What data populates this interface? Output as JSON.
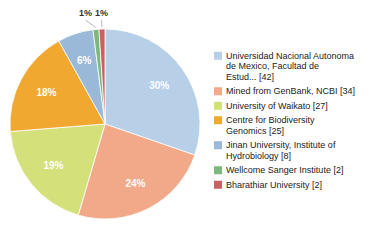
{
  "chart_data": {
    "type": "pie",
    "categories": [
      "Universidad Nacional Autonoma\nde Mexico, Facultad de\nEstud... [42]",
      "Mined from GenBank, NCBI [34]",
      "University of Waikato [27]",
      "Centre for Biodiversity\nGenomics [25]",
      "Jinan University, Institute of\nHydrobiology [8]",
      "Wellcome Sanger Institute [2]",
      "Bharathiar University [2]"
    ],
    "values": [
      30,
      24,
      19,
      18,
      6,
      1,
      1
    ],
    "value_labels": [
      "30%",
      "24%",
      "19%",
      "18%",
      "6%",
      "1%",
      "1%"
    ],
    "colors": [
      "#b8cfe8",
      "#f2a98a",
      "#d4e07a",
      "#f0a830",
      "#9ab8d8",
      "#7db87d",
      "#cc5f5f"
    ],
    "data_labels": true,
    "legend": "right"
  }
}
